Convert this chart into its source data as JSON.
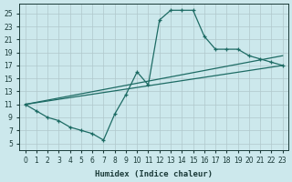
{
  "xlabel": "Humidex (Indice chaleur)",
  "bg_color": "#cce8ec",
  "grid_color": "#b0c8cc",
  "line_color": "#1d6b64",
  "xlim": [
    -0.5,
    23.5
  ],
  "ylim": [
    4.0,
    26.5
  ],
  "xticks": [
    0,
    1,
    2,
    3,
    4,
    5,
    6,
    7,
    8,
    9,
    10,
    11,
    12,
    13,
    14,
    15,
    16,
    17,
    18,
    19,
    20,
    21,
    22,
    23
  ],
  "yticks": [
    5,
    7,
    9,
    11,
    13,
    15,
    17,
    19,
    21,
    23,
    25
  ],
  "curve1_x": [
    0,
    1,
    2,
    3,
    4,
    5,
    6,
    7,
    8,
    9,
    10,
    11,
    12,
    13,
    14,
    15,
    16,
    17,
    18,
    19,
    20,
    21,
    22,
    23
  ],
  "curve1_y": [
    11,
    10,
    9,
    8.5,
    7.5,
    7,
    6.5,
    5.5,
    9.5,
    12.5,
    16,
    14,
    24,
    25.5,
    25.5,
    25.5,
    21.5,
    19.5,
    19.5,
    19.5,
    18.5,
    18.0,
    17.5,
    17.0
  ],
  "line2_x": [
    0,
    23
  ],
  "line2_y": [
    11,
    17.0
  ],
  "line3_x": [
    0,
    23
  ],
  "line3_y": [
    11,
    18.5
  ]
}
